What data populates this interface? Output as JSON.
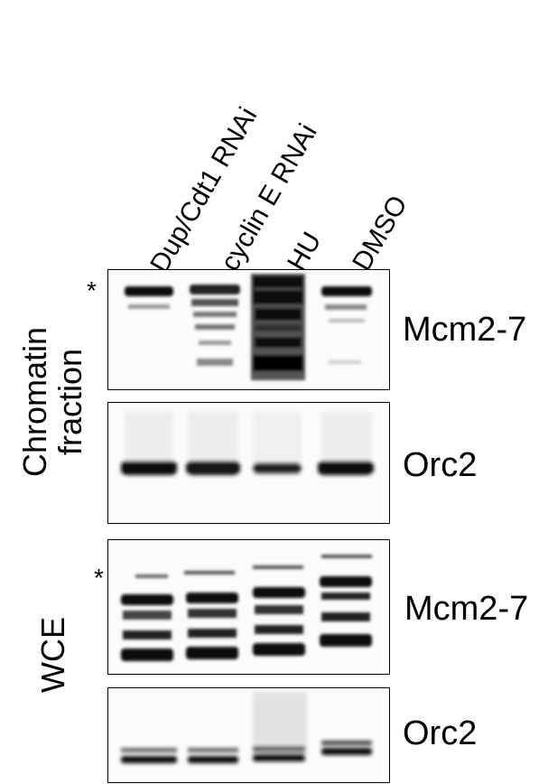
{
  "lanes": [
    "Dup/Cdt1 RNAi",
    "cyclin E RNAi",
    "HU",
    "DMSO"
  ],
  "sections": {
    "chromatin": {
      "label_line1": "Chromatin",
      "label_line2": "fraction"
    },
    "wce": {
      "label": "WCE"
    }
  },
  "panels": {
    "chromatin_mcm": {
      "protein": "Mcm2-7",
      "marker": "*"
    },
    "chromatin_orc": {
      "protein": "Orc2"
    },
    "wce_mcm": {
      "protein": "Mcm2-7",
      "marker": "*"
    },
    "wce_orc": {
      "protein": "Orc2"
    }
  }
}
